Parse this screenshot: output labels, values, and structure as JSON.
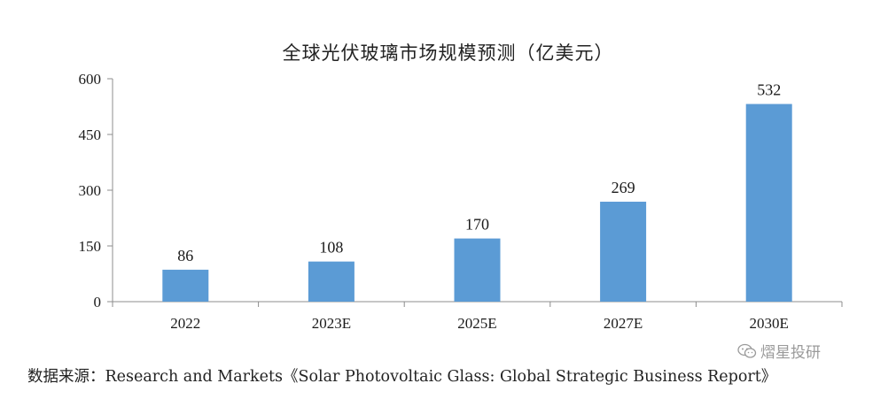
{
  "chart_data": {
    "type": "bar",
    "title": "全球光伏玻璃市场规模预测（亿美元）",
    "categories": [
      "2022",
      "2023E",
      "2025E",
      "2027E",
      "2030E"
    ],
    "values": [
      86,
      108,
      170,
      269,
      532
    ],
    "data_labels": [
      "86",
      "108",
      "170",
      "269",
      "532"
    ],
    "ylim": [
      0,
      600
    ],
    "yticks": [
      0,
      150,
      300,
      450,
      600
    ],
    "ytick_labels": [
      "0",
      "150",
      "300",
      "450",
      "600"
    ],
    "xlabel": "",
    "ylabel": "",
    "grid": false,
    "bar_color": "#5b9bd5"
  },
  "source": "数据来源：Research and Markets《Solar Photovoltaic Glass: Global Strategic Business Report》",
  "watermark": {
    "text": "熠星投研",
    "icon": "wechat-icon"
  }
}
